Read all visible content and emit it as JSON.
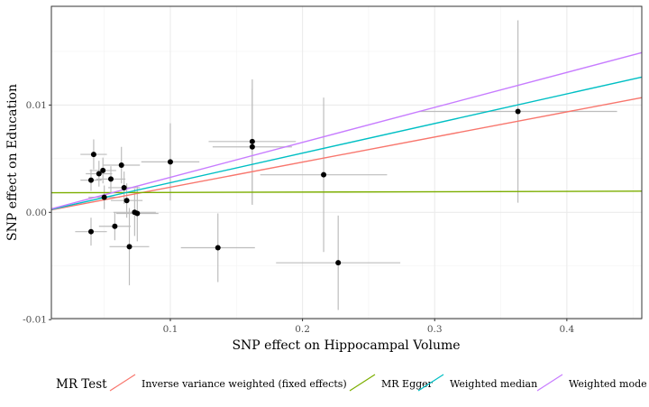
{
  "chart_data": {
    "type": "scatter",
    "xlabel": "SNP effect on Hippocampal Volume",
    "ylabel": "SNP effect on Education",
    "xlim": [
      0.01,
      0.4567
    ],
    "ylim": [
      -0.0099,
      0.0192
    ],
    "x_ticks": [
      {
        "value": 0.1,
        "label": "0.1"
      },
      {
        "value": 0.2,
        "label": "0.2"
      },
      {
        "value": 0.3,
        "label": "0.3"
      },
      {
        "value": 0.4,
        "label": "0.4"
      }
    ],
    "y_ticks": [
      {
        "value": -0.01,
        "label": "-0.01"
      },
      {
        "value": 0.0,
        "label": "0.00"
      },
      {
        "value": 0.01,
        "label": "0.01"
      }
    ],
    "grid": true,
    "points": [
      {
        "x": 0.04,
        "y": 0.003,
        "xerr": 0.008,
        "yerr": 0.001
      },
      {
        "x": 0.042,
        "y": 0.0054,
        "xerr": 0.01,
        "yerr": 0.0014
      },
      {
        "x": 0.046,
        "y": 0.0036,
        "xerr": 0.01,
        "yerr": 0.0012
      },
      {
        "x": 0.049,
        "y": 0.0039,
        "xerr": 0.01,
        "yerr": 0.0012
      },
      {
        "x": 0.05,
        "y": 0.0014,
        "xerr": 0.012,
        "yerr": 0.0011
      },
      {
        "x": 0.055,
        "y": 0.0031,
        "xerr": 0.011,
        "yerr": 0.0012
      },
      {
        "x": 0.04,
        "y": -0.0018,
        "xerr": 0.012,
        "yerr": 0.0013
      },
      {
        "x": 0.058,
        "y": -0.0013,
        "xerr": 0.012,
        "yerr": 0.0013
      },
      {
        "x": 0.063,
        "y": 0.0044,
        "xerr": 0.014,
        "yerr": 0.0017
      },
      {
        "x": 0.065,
        "y": 0.0023,
        "xerr": 0.012,
        "yerr": 0.0015
      },
      {
        "x": 0.067,
        "y": 0.0011,
        "xerr": 0.012,
        "yerr": 0.0016
      },
      {
        "x": 0.069,
        "y": -0.0032,
        "xerr": 0.015,
        "yerr": 0.0036
      },
      {
        "x": 0.073,
        "y": 0.0,
        "xerr": 0.016,
        "yerr": 0.0022
      },
      {
        "x": 0.075,
        "y": -0.0001,
        "xerr": 0.016,
        "yerr": 0.0026
      },
      {
        "x": 0.1,
        "y": 0.0047,
        "xerr": 0.022,
        "yerr": 0.0036
      },
      {
        "x": 0.136,
        "y": -0.0033,
        "xerr": 0.028,
        "yerr": 0.0032
      },
      {
        "x": 0.162,
        "y": 0.0066,
        "xerr": 0.033,
        "yerr": 0.0058
      },
      {
        "x": 0.162,
        "y": 0.0061,
        "xerr": 0.03,
        "yerr": 0.0054
      },
      {
        "x": 0.216,
        "y": 0.0035,
        "xerr": 0.048,
        "yerr": 0.0072
      },
      {
        "x": 0.227,
        "y": -0.0047,
        "xerr": 0.047,
        "yerr": 0.0044
      },
      {
        "x": 0.363,
        "y": 0.0094,
        "xerr": 0.075,
        "yerr": 0.0085
      }
    ],
    "legend": {
      "title": "MR Test",
      "placement": "bottom"
    },
    "series": [
      {
        "name": "Inverse variance weighted (fixed effects)",
        "color": "#F8766D",
        "intercept": 0.0,
        "slope": 0.0234
      },
      {
        "name": "MR Egger",
        "color": "#7CAE00",
        "intercept": 0.00182,
        "slope": 0.00033
      },
      {
        "name": "Weighted median",
        "color": "#00BFC4",
        "intercept": 0.0,
        "slope": 0.0276
      },
      {
        "name": "Weighted mode",
        "color": "#C77CFF",
        "intercept": 0.0,
        "slope": 0.0326
      }
    ]
  }
}
